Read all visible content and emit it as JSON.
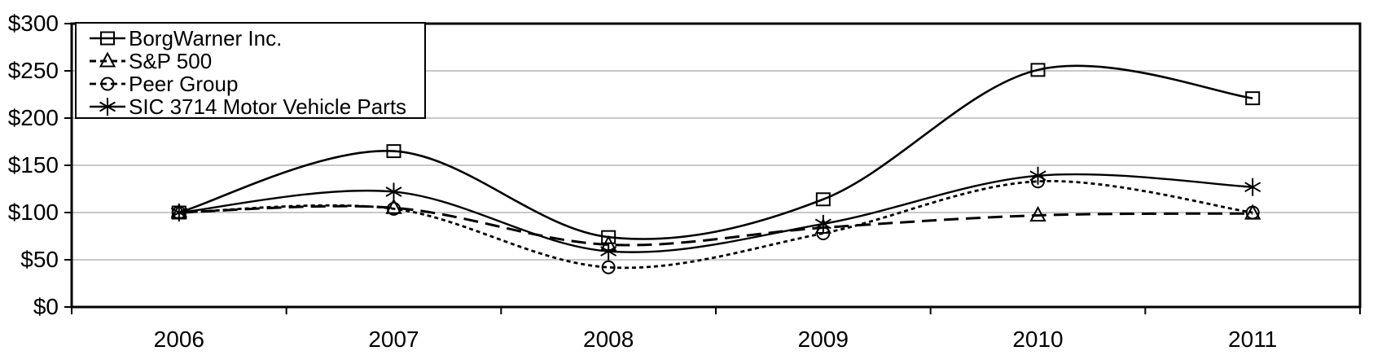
{
  "chart_data": {
    "type": "line",
    "title": "",
    "categories": [
      "2006",
      "2007",
      "2008",
      "2009",
      "2010",
      "2011"
    ],
    "series": [
      {
        "name": "BorgWarner Inc.",
        "values": [
          100,
          165,
          74,
          114,
          251,
          221
        ],
        "marker": "square",
        "line_style": "solid"
      },
      {
        "name": "S&P 500",
        "values": [
          100,
          105,
          66,
          84,
          97,
          99
        ],
        "marker": "triangle",
        "line_style": "long-dash"
      },
      {
        "name": "Peer Group",
        "values": [
          100,
          104,
          42,
          78,
          133,
          100
        ],
        "marker": "circle",
        "line_style": "short-dash"
      },
      {
        "name": "SIC 3714 Motor Vehicle Parts",
        "values": [
          100,
          122,
          59,
          88,
          139,
          127
        ],
        "marker": "asterisk",
        "line_style": "solid"
      }
    ],
    "ylim": [
      0,
      300
    ],
    "ytick_interval": 50,
    "ytick_labels": [
      "$0",
      "$50",
      "$100",
      "$150",
      "$200",
      "$250",
      "$300"
    ],
    "xlabel": "",
    "ylabel": "",
    "grid": true,
    "smoothed_lines": true,
    "legend_position": "top-left",
    "colors": {
      "line": "#000000",
      "gridline": "#a6a6a6",
      "background": "#ffffff",
      "text": "#000000"
    }
  }
}
